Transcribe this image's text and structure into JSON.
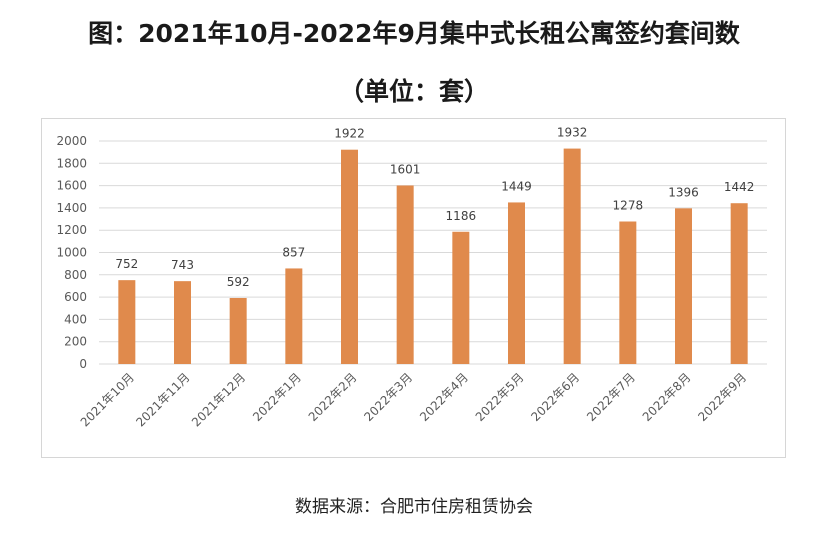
{
  "title": "图：2021年10月-2022年9月集中式长租公寓签约套间数",
  "subtitle": "（单位：套）",
  "source": "数据来源：合肥市住房租赁协会",
  "colors": {
    "bar": "#E08A4C",
    "grid": "#d9d9d9",
    "axis_text": "#595959"
  },
  "chart_data": {
    "type": "bar",
    "categories": [
      "2021年10月",
      "2021年11月",
      "2021年12月",
      "2022年1月",
      "2022年2月",
      "2022年3月",
      "2022年4月",
      "2022年5月",
      "2022年6月",
      "2022年7月",
      "2022年8月",
      "2022年9月"
    ],
    "values": [
      752,
      743,
      592,
      857,
      1922,
      1601,
      1186,
      1449,
      1932,
      1278,
      1396,
      1442
    ],
    "ylim": [
      0,
      2000
    ],
    "yticks": [
      0,
      200,
      400,
      600,
      800,
      1000,
      1200,
      1400,
      1600,
      1800,
      2000
    ],
    "xlabel": "",
    "ylabel": "",
    "grid": true,
    "data_labels": true
  }
}
